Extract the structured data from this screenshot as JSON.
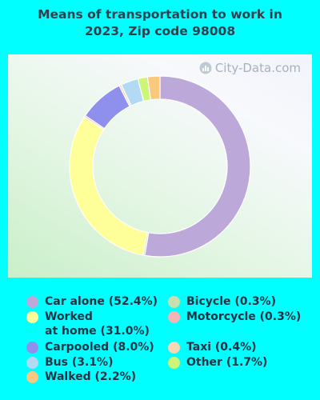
{
  "title_line1": "Means of transportation to work in",
  "title_line2": "2023, Zip code 98008",
  "watermark": "City-Data.com",
  "chart_data": {
    "type": "pie",
    "style": "donut",
    "slices": [
      {
        "label": "Car alone",
        "value": 52.4,
        "color": "#BCA9DA"
      },
      {
        "label": "Bicycle",
        "value": 0.3,
        "color": "#C8DFB0"
      },
      {
        "label": "Worked at home",
        "value": 31.0,
        "color": "#FFFF99"
      },
      {
        "label": "Motorcycle",
        "value": 0.3,
        "color": "#F2B5B5"
      },
      {
        "label": "Carpooled",
        "value": 8.0,
        "color": "#8F8FEE"
      },
      {
        "label": "Taxi",
        "value": 0.4,
        "color": "#F7D8B5"
      },
      {
        "label": "Bus",
        "value": 3.1,
        "color": "#B3DAF5"
      },
      {
        "label": "Other",
        "value": 1.7,
        "color": "#CCF57A"
      },
      {
        "label": "Walked",
        "value": 2.2,
        "color": "#F8C97E"
      }
    ],
    "legend": [
      {
        "text": "Car alone (52.4%)",
        "color": "#BCA9DA"
      },
      {
        "text": "Worked",
        "text2": "at home (31.0%)",
        "color": "#FFFF99"
      },
      {
        "text": "Carpooled (8.0%)",
        "color": "#8F8FEE"
      },
      {
        "text": "Bus (3.1%)",
        "color": "#B3DAF5"
      },
      {
        "text": "Walked (2.2%)",
        "color": "#F8C97E"
      },
      {
        "text": "Bicycle (0.3%)",
        "color": "#C8DFB0"
      },
      {
        "text": "Motorcycle (0.3%)",
        "color": "#F2B5B5"
      },
      {
        "text": "Taxi (0.4%)",
        "color": "#F7D8B5"
      },
      {
        "text": "Other (1.7%)",
        "color": "#CCF57A"
      }
    ]
  }
}
